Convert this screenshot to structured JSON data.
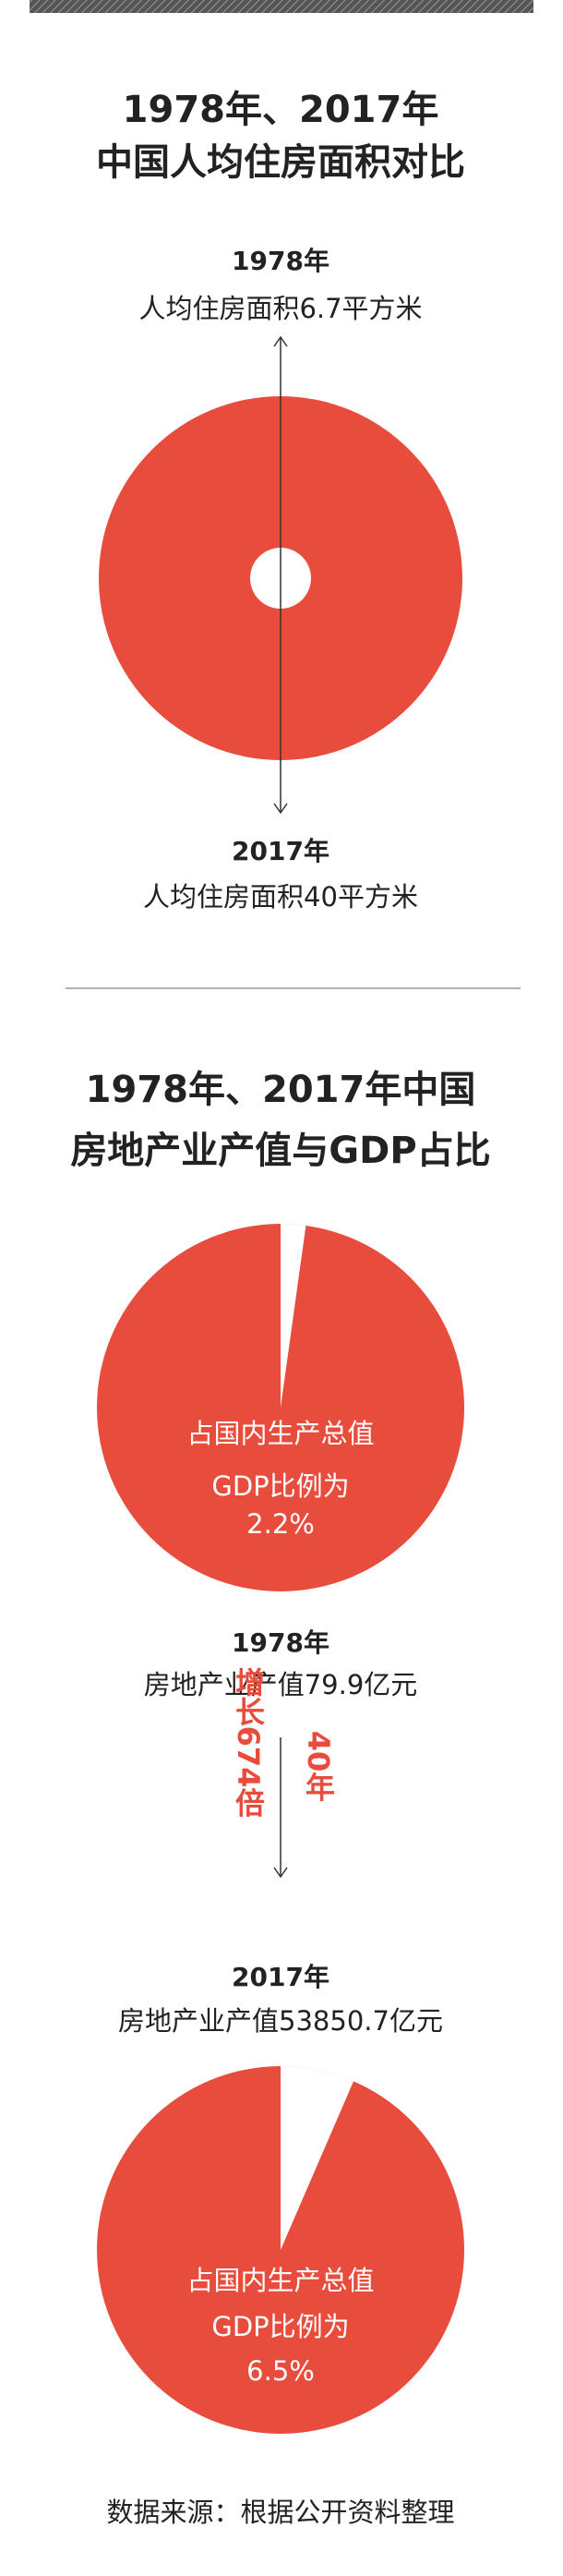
{
  "chart_data": [
    {
      "type": "circle-area",
      "title": [
        "1978年、2017年",
        "中国人均住房面积对比"
      ],
      "color": "#e84c3d",
      "items": [
        {
          "year": "1978年",
          "label": "人均住房面积6.7平方米",
          "value": 6.7
        },
        {
          "year": "2017年",
          "label": "人均住房面积40平方米",
          "value": 40
        }
      ]
    },
    {
      "type": "pie",
      "title": [
        "1978年、2017年中国",
        "房地产业产值与GDP占比"
      ],
      "color": "#e84c3d",
      "series": [
        {
          "name": "1978年",
          "subtitle": "房地产业产值79.9亿元",
          "caption": [
            "占国内生产总值",
            "GDP比例为"
          ],
          "values": [
            2.2
          ],
          "value_labels": [
            "2.2%"
          ]
        },
        {
          "name": "2017年",
          "subtitle": "房地产业产值53850.7亿元",
          "caption": [
            "占国内生产总值",
            "GDP比例为"
          ],
          "values": [
            6.5
          ],
          "value_labels": [
            "6.5%"
          ]
        }
      ],
      "growth": "增长674倍",
      "span": "40年"
    }
  ],
  "footer": "数据来源：根据公开资料整理"
}
